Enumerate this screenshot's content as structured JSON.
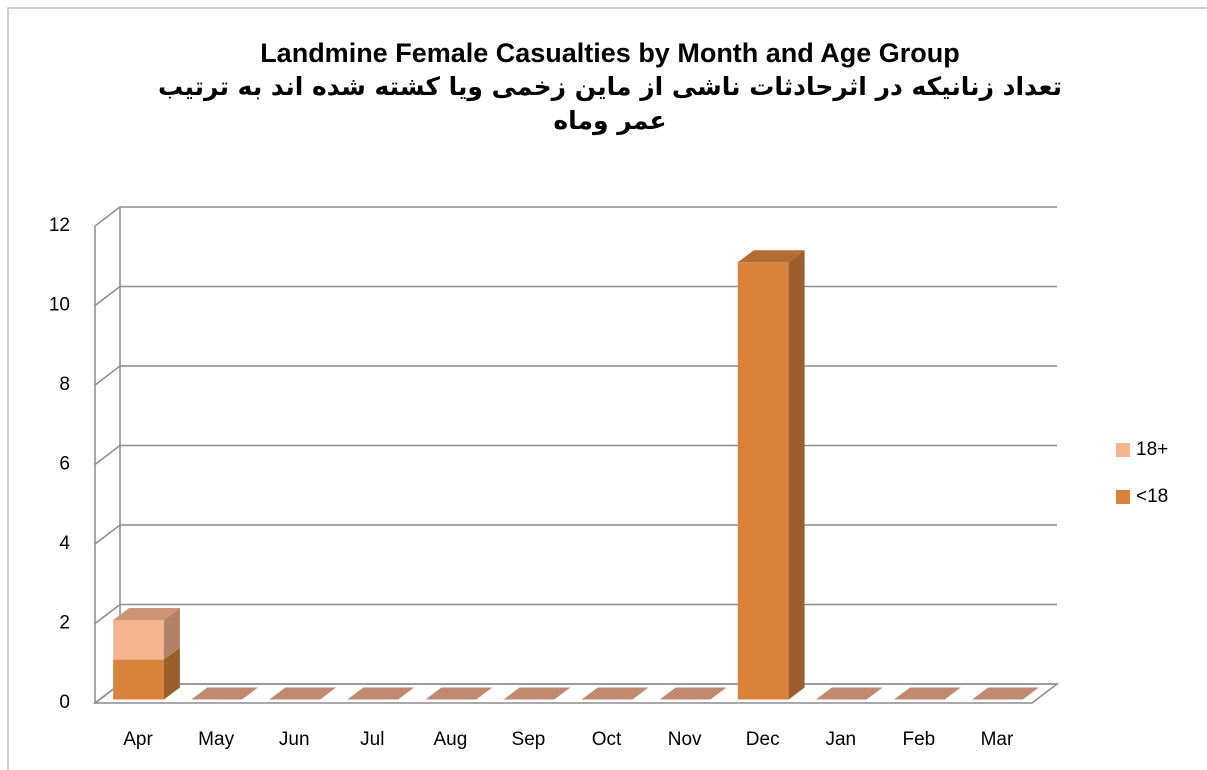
{
  "chart_data": {
    "type": "bar3d_stacked",
    "title": "Landmine Female Casualties by Month and Age Group",
    "subtitle": "تعداد زنانیکه در اثرحادثات ناشی از ماین زخمی ویا کشته شده اند به ترتیب عمر وماه",
    "categories": [
      "Apr",
      "May",
      "Jun",
      "Jul",
      "Aug",
      "Sep",
      "Oct",
      "Nov",
      "Dec",
      "Jan",
      "Feb",
      "Mar"
    ],
    "series": [
      {
        "name": "<18",
        "color": "#d9823b",
        "values": [
          1,
          0,
          0,
          0,
          0,
          0,
          0,
          0,
          11,
          0,
          0,
          0
        ]
      },
      {
        "name": "18+",
        "color": "#f6b48f",
        "values": [
          1,
          0,
          0,
          0,
          0,
          0,
          0,
          0,
          0,
          0,
          0,
          0
        ]
      }
    ],
    "ylim": [
      0,
      12
    ],
    "yticks": [
      0,
      2,
      4,
      6,
      8,
      10,
      12
    ],
    "grid": true,
    "legend": "right"
  }
}
